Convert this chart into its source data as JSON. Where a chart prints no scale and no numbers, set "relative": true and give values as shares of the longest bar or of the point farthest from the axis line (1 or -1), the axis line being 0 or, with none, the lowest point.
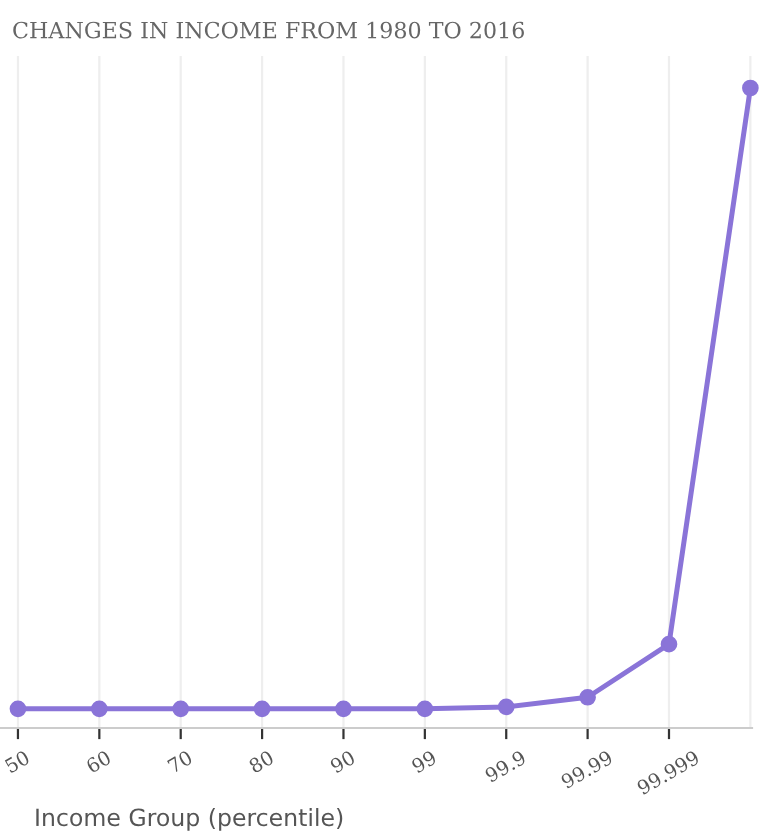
{
  "chart_data": {
    "type": "line",
    "title": "CHANGES IN INCOME FROM 1980 TO 2016",
    "xlabel": "Income Group (percentile)",
    "categories": [
      "50",
      "60",
      "70",
      "80",
      "90",
      "99",
      "99.9",
      "99.99",
      "99.999",
      null
    ],
    "relative": true,
    "grid": "x",
    "marker": "circle",
    "line_style": "solid",
    "series": [
      {
        "color": "#8a74d8",
        "values": [
          0.03,
          0.03,
          0.03,
          0.03,
          0.03,
          0.03,
          0.033,
          0.048,
          0.131,
          1
        ]
      }
    ]
  }
}
